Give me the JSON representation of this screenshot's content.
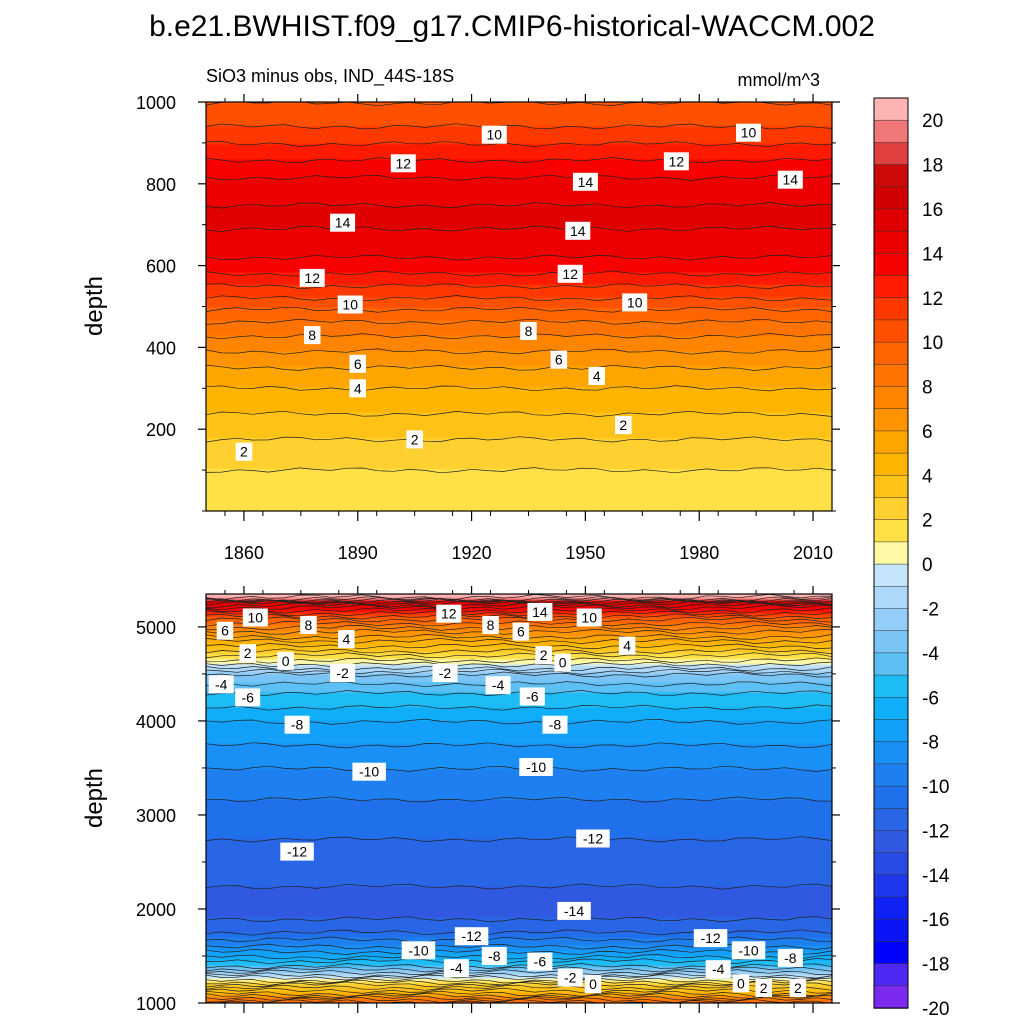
{
  "title": "b.e21.BWHIST.f09_g17.CMIP6-historical-WACCM.002",
  "subtitle_left": "SiO3 minus obs, IND_44S-18S",
  "subtitle_right": "mmol/m^3",
  "chart_data": [
    {
      "type": "heatmap",
      "panel": "upper",
      "xlabel": "",
      "ylabel": "depth",
      "xlim": [
        1850,
        2015
      ],
      "ylim": [
        1000,
        0
      ],
      "x_ticks": [
        1860,
        1890,
        1920,
        1950,
        1980,
        2010
      ],
      "y_ticks": [
        200,
        400,
        600,
        800,
        1000
      ],
      "depth_profile": {
        "depth": [
          10,
          100,
          150,
          200,
          250,
          300,
          350,
          400,
          450,
          500,
          550,
          600,
          650,
          700,
          750,
          800,
          850,
          900,
          950,
          1000
        ],
        "value": [
          1,
          1,
          1.6,
          2.4,
          3.2,
          4.0,
          5.0,
          6.2,
          7.6,
          9.2,
          11.0,
          12.6,
          13.5,
          14.1,
          14.0,
          13.4,
          12.2,
          11.0,
          9.8,
          9.0
        ]
      },
      "contour_labels": [
        {
          "label": "2",
          "x": 1860,
          "depth": 145
        },
        {
          "label": "2",
          "x": 1905,
          "depth": 175
        },
        {
          "label": "2",
          "x": 1960,
          "depth": 210
        },
        {
          "label": "4",
          "x": 1890,
          "depth": 300
        },
        {
          "label": "4",
          "x": 1953,
          "depth": 330
        },
        {
          "label": "6",
          "x": 1890,
          "depth": 360
        },
        {
          "label": "6",
          "x": 1943,
          "depth": 370
        },
        {
          "label": "8",
          "x": 1878,
          "depth": 430
        },
        {
          "label": "8",
          "x": 1935,
          "depth": 440
        },
        {
          "label": "10",
          "x": 1888,
          "depth": 505
        },
        {
          "label": "10",
          "x": 1963,
          "depth": 510
        },
        {
          "label": "12",
          "x": 1878,
          "depth": 570
        },
        {
          "label": "12",
          "x": 1946,
          "depth": 580
        },
        {
          "label": "14",
          "x": 1886,
          "depth": 705
        },
        {
          "label": "14",
          "x": 1948,
          "depth": 685
        },
        {
          "label": "14",
          "x": 1950,
          "depth": 805
        },
        {
          "label": "14",
          "x": 2004,
          "depth": 810
        },
        {
          "label": "12",
          "x": 1902,
          "depth": 850
        },
        {
          "label": "12",
          "x": 1974,
          "depth": 855
        },
        {
          "label": "10",
          "x": 1926,
          "depth": 920
        },
        {
          "label": "10",
          "x": 1993,
          "depth": 925
        }
      ]
    },
    {
      "type": "heatmap",
      "panel": "lower",
      "xlabel": "",
      "ylabel": "depth",
      "xlim": [
        1850,
        2015
      ],
      "ylim": [
        5350,
        1000
      ],
      "y_ticks": [
        1000,
        2000,
        3000,
        4000,
        5000
      ],
      "depth_profile": {
        "depth": [
          1000,
          1100,
          1200,
          1300,
          1400,
          1600,
          1800,
          2000,
          2500,
          3000,
          3500,
          4000,
          4300,
          4500,
          4600,
          4700,
          4800,
          4900,
          5000,
          5100,
          5200,
          5260,
          5300,
          5350
        ],
        "value": [
          9,
          4,
          1,
          -3,
          -6,
          -10,
          -12.5,
          -13.5,
          -12.5,
          -11.5,
          -10,
          -8,
          -6,
          -4,
          -1,
          1,
          3,
          5,
          7,
          9.5,
          12.5,
          15,
          19,
          21
        ]
      },
      "contour_labels": [
        {
          "label": "0",
          "x": 1952,
          "depth": 1200
        },
        {
          "label": "-2",
          "x": 1946,
          "depth": 1270
        },
        {
          "label": "-4",
          "x": 1916,
          "depth": 1370
        },
        {
          "label": "-6",
          "x": 1938,
          "depth": 1440
        },
        {
          "label": "-8",
          "x": 1926,
          "depth": 1500
        },
        {
          "label": "-10",
          "x": 1906,
          "depth": 1560
        },
        {
          "label": "-12",
          "x": 1920,
          "depth": 1710
        },
        {
          "label": "0",
          "x": 1991,
          "depth": 1210
        },
        {
          "label": "2",
          "x": 1997,
          "depth": 1160
        },
        {
          "label": "2",
          "x": 2006,
          "depth": 1160
        },
        {
          "label": "-4",
          "x": 1985,
          "depth": 1360
        },
        {
          "label": "-8",
          "x": 2004,
          "depth": 1480
        },
        {
          "label": "-10",
          "x": 1993,
          "depth": 1560
        },
        {
          "label": "-12",
          "x": 1983,
          "depth": 1690
        },
        {
          "label": "-14",
          "x": 1947,
          "depth": 1980
        },
        {
          "label": "-12",
          "x": 1874,
          "depth": 2610
        },
        {
          "label": "-12",
          "x": 1952,
          "depth": 2750
        },
        {
          "label": "-10",
          "x": 1893,
          "depth": 3460
        },
        {
          "label": "-10",
          "x": 1937,
          "depth": 3510
        },
        {
          "label": "-8",
          "x": 1874,
          "depth": 3960
        },
        {
          "label": "-8",
          "x": 1942,
          "depth": 3960
        },
        {
          "label": "-6",
          "x": 1861,
          "depth": 4250
        },
        {
          "label": "-6",
          "x": 1936,
          "depth": 4260
        },
        {
          "label": "-4",
          "x": 1854,
          "depth": 4390
        },
        {
          "label": "-4",
          "x": 1927,
          "depth": 4380
        },
        {
          "label": "-2",
          "x": 1886,
          "depth": 4510
        },
        {
          "label": "-2",
          "x": 1913,
          "depth": 4510
        },
        {
          "label": "0",
          "x": 1871,
          "depth": 4640
        },
        {
          "label": "0",
          "x": 1944,
          "depth": 4620
        },
        {
          "label": "2",
          "x": 1861,
          "depth": 4720
        },
        {
          "label": "2",
          "x": 1939,
          "depth": 4700
        },
        {
          "label": "4",
          "x": 1887,
          "depth": 4870
        },
        {
          "label": "4",
          "x": 1961,
          "depth": 4800
        },
        {
          "label": "6",
          "x": 1855,
          "depth": 4960
        },
        {
          "label": "6",
          "x": 1933,
          "depth": 4950
        },
        {
          "label": "8",
          "x": 1877,
          "depth": 5020
        },
        {
          "label": "8",
          "x": 1925,
          "depth": 5020
        },
        {
          "label": "10",
          "x": 1863,
          "depth": 5100
        },
        {
          "label": "10",
          "x": 1951,
          "depth": 5100
        },
        {
          "label": "12",
          "x": 1914,
          "depth": 5140
        },
        {
          "label": "14",
          "x": 1938,
          "depth": 5160
        }
      ]
    }
  ],
  "colorbar": {
    "levels": [
      -20,
      -19,
      -18,
      -17,
      -16,
      -15,
      -14,
      -13,
      -12,
      -11,
      -10,
      -9,
      -8,
      -7,
      -6,
      -5,
      -4,
      -3,
      -2,
      -1,
      0,
      1,
      2,
      3,
      4,
      5,
      6,
      7,
      8,
      9,
      10,
      11,
      12,
      13,
      14,
      15,
      16,
      17,
      18,
      19,
      20
    ],
    "labels": [
      "20",
      "18",
      "16",
      "14",
      "12",
      "10",
      "8",
      "6",
      "4",
      "2",
      "0",
      "-2",
      "-4",
      "-6",
      "-8",
      "-10",
      "-12",
      "-14",
      "-16",
      "-18",
      "-20"
    ],
    "colors_top_to_bottom": [
      "#ffb4b4",
      "#f07878",
      "#e04040",
      "#cc0a0a",
      "#d20000",
      "#e00000",
      "#ec0000",
      "#f80000",
      "#ff1a00",
      "#ff3800",
      "#ff5000",
      "#ff6400",
      "#ff7400",
      "#ff8400",
      "#ff9400",
      "#ffa500",
      "#ffb500",
      "#ffc318",
      "#ffd030",
      "#ffe046",
      "#fff8a4",
      "#c5e5fb",
      "#acd9fa",
      "#94cdf7",
      "#7ac5f5",
      "#5cc0f5",
      "#1ebcf5",
      "#10aef9",
      "#12a0fa",
      "#1890f5",
      "#1e80f0",
      "#2070eb",
      "#2866e6",
      "#3058e0",
      "#2a4ae6",
      "#1e36ee",
      "#1022f3",
      "#0a14f5",
      "#0000ff",
      "#5028f5",
      "#7c2af0"
    ]
  }
}
